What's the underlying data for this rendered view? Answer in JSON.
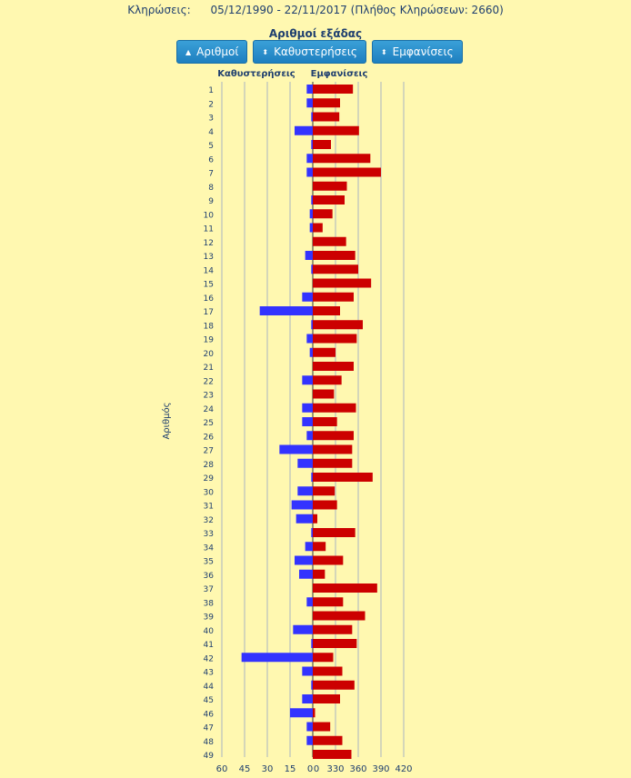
{
  "header": {
    "draws_label": "Κληρώσεις:",
    "range": "05/12/1990 - 22/11/2017",
    "count_text": "(Πλήθος Κληρώσεων: 2660)"
  },
  "buttons": [
    {
      "label": "Αριθμοί",
      "icon": "caret-up-icon"
    },
    {
      "label": "Καθυστερήσεις",
      "icon": "sort-icon"
    },
    {
      "label": "Εμφανίσεις",
      "icon": "sort-icon"
    }
  ],
  "colors": {
    "delay": "#3333ff",
    "appear": "#cc0000",
    "grid": "#a9b4c2"
  },
  "chart_data": {
    "type": "bar",
    "title": "Αριθμοί εξάδας",
    "ylabel": "Αριθμός",
    "left_axis": {
      "label": "Καθυστερήσεις",
      "ticks": [
        60,
        45,
        30,
        15,
        0
      ],
      "range": [
        0,
        60
      ]
    },
    "right_axis": {
      "label": "Εμφανίσεις",
      "ticks": [
        300,
        330,
        360,
        390,
        420
      ],
      "range": [
        300,
        420
      ],
      "first_tick_label": "0"
    },
    "categories": [
      "1",
      "2",
      "3",
      "4",
      "5",
      "6",
      "7",
      "8",
      "9",
      "10",
      "11",
      "12",
      "13",
      "14",
      "15",
      "16",
      "17",
      "18",
      "19",
      "20",
      "21",
      "22",
      "23",
      "24",
      "25",
      "26",
      "27",
      "28",
      "29",
      "30",
      "31",
      "32",
      "33",
      "34",
      "35",
      "36",
      "37",
      "38",
      "39",
      "40",
      "41",
      "42",
      "43",
      "44",
      "45",
      "46",
      "47",
      "48",
      "49"
    ],
    "series": [
      {
        "name": "Καθυστερήσεις",
        "values": [
          4,
          4,
          1,
          12,
          1,
          4,
          4,
          0,
          1,
          2,
          2,
          0,
          5,
          1,
          0,
          7,
          35,
          1,
          4,
          2,
          0,
          7,
          0,
          7,
          7,
          4,
          22,
          10,
          1,
          10,
          14,
          11,
          1,
          5,
          12,
          9,
          0,
          4,
          0,
          13,
          1,
          47,
          7,
          1,
          7,
          15,
          4,
          4,
          0
        ]
      },
      {
        "name": "Εμφανίσεις",
        "values": [
          353,
          336,
          335,
          361,
          324,
          376,
          390,
          345,
          342,
          326,
          313,
          344,
          356,
          360,
          377,
          354,
          336,
          366,
          358,
          330,
          354,
          338,
          328,
          357,
          332,
          354,
          352,
          352,
          379,
          329,
          332,
          306,
          356,
          317,
          340,
          316,
          385,
          340,
          369,
          352,
          358,
          327,
          339,
          355,
          336,
          303,
          323,
          339,
          351
        ]
      }
    ]
  }
}
